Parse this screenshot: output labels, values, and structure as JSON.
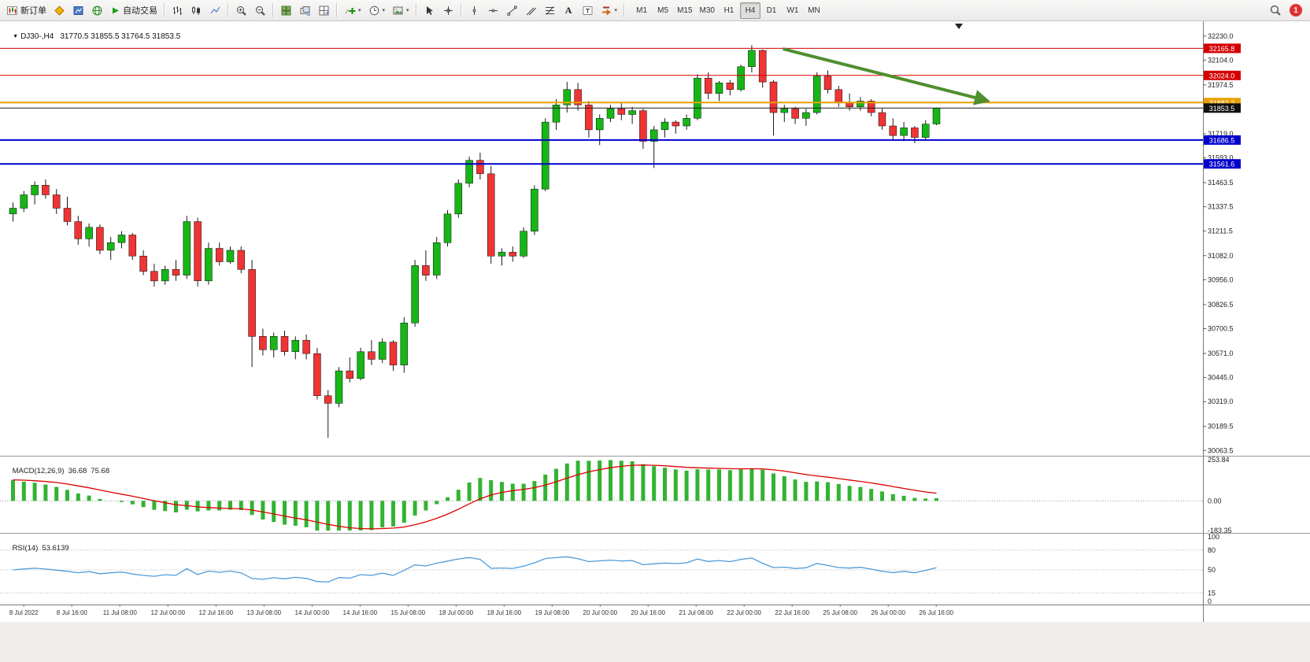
{
  "toolbar": {
    "new_order_label": "新订单",
    "autotrading_label": "自动交易",
    "text_tool_label": "A",
    "timeframes": [
      "M1",
      "M5",
      "M15",
      "M30",
      "H1",
      "H4",
      "D1",
      "W1",
      "MN"
    ],
    "active_timeframe": "H4",
    "notification_count": "1"
  },
  "chart": {
    "title_symbol": "DJ30-,H4",
    "title_ohlc": "31770.5 31855.5 31764.5 31853.5"
  },
  "indicators": {
    "macd": {
      "label": "MACD(12,26,9)",
      "value_main": "36.68",
      "value_signal": "75.68",
      "axis": [
        253.84,
        0.0,
        -183.35
      ],
      "params": [
        12,
        26,
        9
      ]
    },
    "rsi": {
      "label": "RSI(14)",
      "value": "53.6139",
      "axis": [
        100,
        80,
        50,
        15,
        0
      ],
      "levels": [
        80,
        50,
        15
      ],
      "period": 14
    }
  },
  "chart_data": {
    "type": "candlestick",
    "symbol": "DJ30-",
    "timeframe": "H4",
    "ylim": [
      30040,
      32262
    ],
    "price_axis_labels": [
      32230.0,
      32104.0,
      31974.5,
      31719.0,
      31593.0,
      31463.5,
      31337.5,
      31211.5,
      31082.0,
      30956.0,
      30826.5,
      30700.5,
      30571.0,
      30445.0,
      30319.0,
      30189.5,
      30063.5
    ],
    "time_labels": [
      "8 Jul 2022",
      "8 Jul 16:00",
      "11 Jul 08:00",
      "12 Jul 00:00",
      "12 Jul 16:00",
      "13 Jul 08:00",
      "14 Jul 00:00",
      "14 Jul 16:00",
      "15 Jul 08:00",
      "18 Jul 00:00",
      "18 Jul 16:00",
      "19 Jul 08:00",
      "20 Jul 00:00",
      "20 Jul 16:00",
      "21 Jul 08:00",
      "22 Jul 00:00",
      "22 Jul 16:00",
      "25 Jul 08:00",
      "26 Jul 00:00",
      "26 Jul 16:00"
    ],
    "hlines": [
      {
        "price": 32165.8,
        "label": "32165.8",
        "color": "#d40000",
        "tag_bg": "#d40000",
        "width": 1
      },
      {
        "price": 32024.0,
        "label": "32024.0",
        "color": "#d40000",
        "tag_bg": "#d40000",
        "width": 1
      },
      {
        "price": 31882.2,
        "label": "31882.2",
        "color": "#e8a000",
        "tag_bg": "#e8a000",
        "width": 2
      },
      {
        "price": 31853.5,
        "label": "31853.5",
        "color": "#1a1a1a",
        "tag_bg": "#111111",
        "width": 1
      },
      {
        "price": 31686.5,
        "label": "31686.5",
        "color": "#0000cc",
        "tag_bg": "#0000cc",
        "width": 2
      },
      {
        "price": 31561.6,
        "label": "31561.6",
        "color": "#0000cc",
        "tag_bg": "#0000cc",
        "width": 2
      }
    ],
    "arrow": {
      "from_bar": 71.2,
      "from_price": 32163,
      "to_bar": 90,
      "to_price": 31892,
      "color": "#4e8f2e",
      "width": 4
    },
    "colors": {
      "up": "#16b616",
      "down": "#ee3434",
      "wick": "#1a1a1a",
      "macd_hist": "#32b332",
      "macd_signal": "#dd0000",
      "rsi_line": "#4f9bd8"
    },
    "candles": [
      [
        31300,
        31360,
        31260,
        31330
      ],
      [
        31330,
        31420,
        31310,
        31400
      ],
      [
        31400,
        31470,
        31350,
        31450
      ],
      [
        31450,
        31480,
        31380,
        31400
      ],
      [
        31400,
        31430,
        31300,
        31330
      ],
      [
        31330,
        31390,
        31240,
        31260
      ],
      [
        31260,
        31290,
        31140,
        31170
      ],
      [
        31170,
        31250,
        31130,
        31230
      ],
      [
        31230,
        31245,
        31090,
        31110
      ],
      [
        31110,
        31180,
        31060,
        31150
      ],
      [
        31150,
        31210,
        31120,
        31190
      ],
      [
        31190,
        31200,
        31060,
        31080
      ],
      [
        31080,
        31110,
        30980,
        31000
      ],
      [
        31000,
        31040,
        30920,
        30950
      ],
      [
        30950,
        31030,
        30930,
        31010
      ],
      [
        31010,
        31060,
        30950,
        30980
      ],
      [
        30980,
        31290,
        30960,
        31260
      ],
      [
        31260,
        31280,
        30920,
        30950
      ],
      [
        30950,
        31150,
        30930,
        31120
      ],
      [
        31120,
        31150,
        31030,
        31050
      ],
      [
        31050,
        31130,
        31040,
        31110
      ],
      [
        31110,
        31130,
        30990,
        31010
      ],
      [
        31010,
        31060,
        30500,
        30660
      ],
      [
        30660,
        30700,
        30560,
        30590
      ],
      [
        30590,
        30680,
        30550,
        30660
      ],
      [
        30660,
        30690,
        30560,
        30580
      ],
      [
        30580,
        30660,
        30540,
        30640
      ],
      [
        30640,
        30670,
        30540,
        30570
      ],
      [
        30570,
        30600,
        30330,
        30350
      ],
      [
        30350,
        30380,
        30130,
        30310
      ],
      [
        30310,
        30500,
        30290,
        30480
      ],
      [
        30480,
        30550,
        30420,
        30440
      ],
      [
        30440,
        30600,
        30430,
        30580
      ],
      [
        30580,
        30640,
        30510,
        30540
      ],
      [
        30540,
        30650,
        30520,
        30630
      ],
      [
        30630,
        30640,
        30480,
        30510
      ],
      [
        30510,
        30760,
        30470,
        30730
      ],
      [
        30730,
        31060,
        30710,
        31030
      ],
      [
        31030,
        31110,
        30950,
        30980
      ],
      [
        30980,
        31180,
        30960,
        31150
      ],
      [
        31150,
        31320,
        31130,
        31300
      ],
      [
        31300,
        31480,
        31280,
        31460
      ],
      [
        31460,
        31600,
        31440,
        31580
      ],
      [
        31580,
        31620,
        31480,
        31510
      ],
      [
        31510,
        31550,
        31040,
        31080
      ],
      [
        31080,
        31120,
        31030,
        31100
      ],
      [
        31100,
        31130,
        31050,
        31080
      ],
      [
        31080,
        31230,
        31070,
        31210
      ],
      [
        31210,
        31450,
        31190,
        31430
      ],
      [
        31430,
        31800,
        31420,
        31780
      ],
      [
        31780,
        31900,
        31740,
        31870
      ],
      [
        31870,
        31990,
        31830,
        31950
      ],
      [
        31950,
        31985,
        31840,
        31870
      ],
      [
        31870,
        31890,
        31700,
        31740
      ],
      [
        31740,
        31820,
        31660,
        31800
      ],
      [
        31800,
        31870,
        31780,
        31850
      ],
      [
        31850,
        31880,
        31790,
        31820
      ],
      [
        31820,
        31860,
        31770,
        31840
      ],
      [
        31840,
        31850,
        31640,
        31680
      ],
      [
        31680,
        31760,
        31540,
        31740
      ],
      [
        31740,
        31800,
        31700,
        31780
      ],
      [
        31780,
        31790,
        31720,
        31760
      ],
      [
        31760,
        31820,
        31740,
        31800
      ],
      [
        31800,
        32030,
        31790,
        32010
      ],
      [
        32010,
        32040,
        31900,
        31930
      ],
      [
        31930,
        31995,
        31890,
        31985
      ],
      [
        31985,
        32000,
        31920,
        31950
      ],
      [
        31950,
        32080,
        31940,
        32070
      ],
      [
        32070,
        32182,
        32040,
        32155
      ],
      [
        32155,
        32160,
        31960,
        31990
      ],
      [
        31990,
        32000,
        31710,
        31830
      ],
      [
        31830,
        31870,
        31780,
        31850
      ],
      [
        31850,
        31860,
        31770,
        31800
      ],
      [
        31800,
        31850,
        31760,
        31830
      ],
      [
        31830,
        32040,
        31820,
        32020
      ],
      [
        32020,
        32050,
        31930,
        31950
      ],
      [
        31950,
        31970,
        31860,
        31880
      ],
      [
        31880,
        31930,
        31840,
        31860
      ],
      [
        31860,
        31910,
        31840,
        31890
      ],
      [
        31890,
        31900,
        31810,
        31830
      ],
      [
        31830,
        31850,
        31740,
        31760
      ],
      [
        31760,
        31800,
        31690,
        31710
      ],
      [
        31710,
        31780,
        31680,
        31750
      ],
      [
        31750,
        31760,
        31670,
        31700
      ],
      [
        31700,
        31790,
        31690,
        31770
      ],
      [
        31770.5,
        31855.5,
        31764.5,
        31853.5
      ]
    ]
  }
}
